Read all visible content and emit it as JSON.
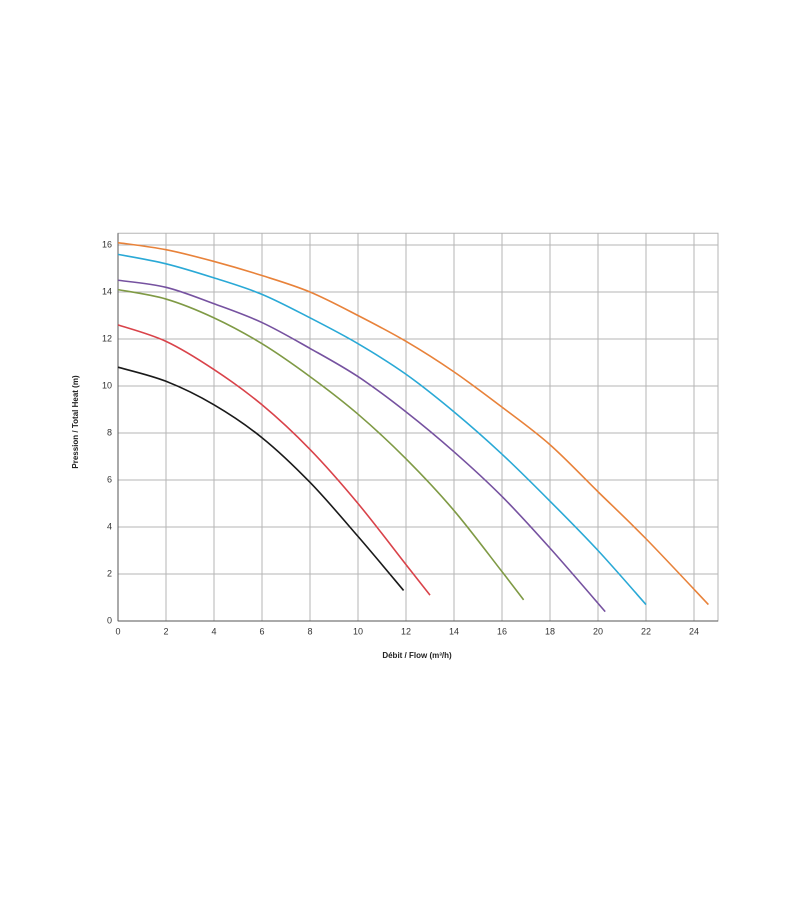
{
  "chart_data": {
    "type": "line",
    "xlabel": "Débit / Flow (m³/h)",
    "ylabel": "Pression / Total Heat (m)",
    "xlim": [
      0,
      25
    ],
    "ylim": [
      0,
      16.5
    ],
    "xticks": [
      0,
      2,
      4,
      6,
      8,
      10,
      12,
      14,
      16,
      18,
      20,
      22,
      24
    ],
    "yticks": [
      0,
      2,
      4,
      6,
      8,
      10,
      12,
      14,
      16
    ],
    "grid": true,
    "series": [
      {
        "color": "#1a1a1a",
        "x": [
          0,
          2,
          4,
          6,
          8,
          10,
          11.9
        ],
        "values": [
          10.8,
          10.2,
          9.2,
          7.8,
          5.9,
          3.6,
          1.3
        ]
      },
      {
        "color": "#d9434a",
        "x": [
          0,
          2,
          4,
          6,
          8,
          10,
          12,
          13
        ],
        "values": [
          12.6,
          11.9,
          10.7,
          9.2,
          7.3,
          5.0,
          2.4,
          1.1
        ]
      },
      {
        "color": "#7f9a45",
        "x": [
          0,
          2,
          4,
          6,
          8,
          10,
          12,
          14,
          16,
          16.9
        ],
        "values": [
          14.1,
          13.7,
          12.9,
          11.8,
          10.4,
          8.8,
          6.9,
          4.7,
          2.1,
          0.9
        ]
      },
      {
        "color": "#7652a0",
        "x": [
          0,
          2,
          4,
          6,
          8,
          10,
          12,
          14,
          16,
          18,
          20.3
        ],
        "values": [
          14.5,
          14.2,
          13.5,
          12.7,
          11.6,
          10.4,
          8.9,
          7.2,
          5.3,
          3.1,
          0.4
        ]
      },
      {
        "color": "#2aa9d6",
        "x": [
          0,
          2,
          4,
          6,
          8,
          10,
          12,
          14,
          16,
          18,
          20,
          22
        ],
        "values": [
          15.6,
          15.2,
          14.6,
          13.9,
          12.9,
          11.8,
          10.5,
          8.9,
          7.1,
          5.1,
          3.0,
          0.7
        ]
      },
      {
        "color": "#e8823a",
        "x": [
          0,
          2,
          4,
          6,
          8,
          10,
          12,
          14,
          16,
          18,
          20,
          22,
          24.6
        ],
        "values": [
          16.1,
          15.8,
          15.3,
          14.7,
          14.0,
          13.0,
          11.9,
          10.6,
          9.1,
          7.5,
          5.5,
          3.5,
          0.7
        ]
      }
    ]
  }
}
